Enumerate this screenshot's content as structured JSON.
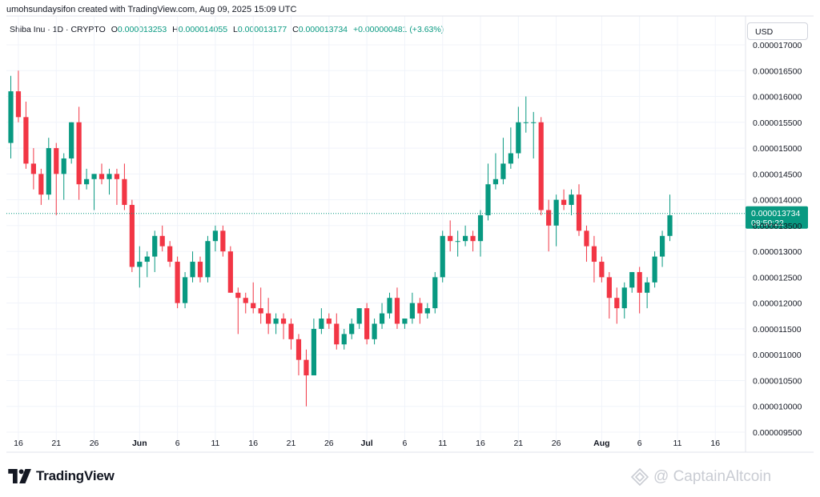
{
  "header": {
    "caption": "umohsundaysifon created with TradingView.com, Aug 09, 2025 15:09 UTC"
  },
  "legend": {
    "symbol": "Shiba Inu · 1D · CRYPTO",
    "open_label": "O",
    "open_value": "0.000013253",
    "high_label": "H",
    "high_value": "0.000014055",
    "low_label": "L",
    "low_value": "0.000013177",
    "close_label": "C",
    "close_value": "0.000013734",
    "change": "+0.000000481 (+3.63%)"
  },
  "currency_button": {
    "label": "USD"
  },
  "price_marker": {
    "price": "0.000013734",
    "countdown": "08:50:22",
    "value": 1.3734e-05,
    "color": "#089981"
  },
  "branding": {
    "logo_text": "TradingView",
    "watermark_text": "@ CaptainAltcoin"
  },
  "colors": {
    "up": "#089981",
    "down": "#f23645",
    "grid": "#f0f3fa",
    "axis_text": "#131722"
  },
  "chart_data": {
    "type": "candlestick",
    "y_axis": {
      "min": 9.5e-06,
      "max": 1.7e-05,
      "step": 5e-07,
      "tick_labels": [
        "0.000017000",
        "0.000016500",
        "0.000016000",
        "0.000015500",
        "0.000015000",
        "0.000014500",
        "0.000014000",
        "0.000013500",
        "0.000013000",
        "0.000012500",
        "0.000012000",
        "0.000011500",
        "0.000011000",
        "0.000010500",
        "0.000010000",
        "0.000009500"
      ]
    },
    "x_axis": {
      "ticks": [
        {
          "label": "16",
          "day": 1
        },
        {
          "label": "21",
          "day": 6
        },
        {
          "label": "26",
          "day": 11
        },
        {
          "label": "Jun",
          "day": 17,
          "bold": true
        },
        {
          "label": "6",
          "day": 22
        },
        {
          "label": "11",
          "day": 27
        },
        {
          "label": "16",
          "day": 32
        },
        {
          "label": "21",
          "day": 37
        },
        {
          "label": "26",
          "day": 42
        },
        {
          "label": "Jul",
          "day": 47,
          "bold": true
        },
        {
          "label": "6",
          "day": 52
        },
        {
          "label": "11",
          "day": 57
        },
        {
          "label": "16",
          "day": 62
        },
        {
          "label": "21",
          "day": 67
        },
        {
          "label": "26",
          "day": 72
        },
        {
          "label": "Aug",
          "day": 78,
          "bold": true
        },
        {
          "label": "6",
          "day": 83
        },
        {
          "label": "11",
          "day": 88
        },
        {
          "label": "16",
          "day": 93
        }
      ]
    },
    "candles": [
      {
        "o": 1.51e-05,
        "h": 1.64e-05,
        "l": 1.48e-05,
        "c": 1.61e-05
      },
      {
        "o": 1.61e-05,
        "h": 1.65e-05,
        "l": 1.55e-05,
        "c": 1.56e-05
      },
      {
        "o": 1.56e-05,
        "h": 1.59e-05,
        "l": 1.46e-05,
        "c": 1.47e-05
      },
      {
        "o": 1.47e-05,
        "h": 1.5e-05,
        "l": 1.42e-05,
        "c": 1.45e-05
      },
      {
        "o": 1.45e-05,
        "h": 1.46e-05,
        "l": 1.39e-05,
        "c": 1.41e-05
      },
      {
        "o": 1.41e-05,
        "h": 1.52e-05,
        "l": 1.4e-05,
        "c": 1.5e-05
      },
      {
        "o": 1.5e-05,
        "h": 1.51e-05,
        "l": 1.37e-05,
        "c": 1.45e-05
      },
      {
        "o": 1.45e-05,
        "h": 1.49e-05,
        "l": 1.4e-05,
        "c": 1.48e-05
      },
      {
        "o": 1.48e-05,
        "h": 1.55e-05,
        "l": 1.47e-05,
        "c": 1.55e-05
      },
      {
        "o": 1.55e-05,
        "h": 1.58e-05,
        "l": 1.4e-05,
        "c": 1.43e-05
      },
      {
        "o": 1.43e-05,
        "h": 1.46e-05,
        "l": 1.42e-05,
        "c": 1.44e-05
      },
      {
        "o": 1.44e-05,
        "h": 1.45e-05,
        "l": 1.38e-05,
        "c": 1.45e-05
      },
      {
        "o": 1.45e-05,
        "h": 1.47e-05,
        "l": 1.43e-05,
        "c": 1.44e-05
      },
      {
        "o": 1.44e-05,
        "h": 1.46e-05,
        "l": 1.41e-05,
        "c": 1.45e-05
      },
      {
        "o": 1.45e-05,
        "h": 1.46e-05,
        "l": 1.39e-05,
        "c": 1.44e-05
      },
      {
        "o": 1.44e-05,
        "h": 1.47e-05,
        "l": 1.38e-05,
        "c": 1.39e-05
      },
      {
        "o": 1.39e-05,
        "h": 1.4e-05,
        "l": 1.26e-05,
        "c": 1.27e-05
      },
      {
        "o": 1.27e-05,
        "h": 1.31e-05,
        "l": 1.23e-05,
        "c": 1.28e-05
      },
      {
        "o": 1.28e-05,
        "h": 1.3e-05,
        "l": 1.25e-05,
        "c": 1.29e-05
      },
      {
        "o": 1.29e-05,
        "h": 1.34e-05,
        "l": 1.26e-05,
        "c": 1.33e-05
      },
      {
        "o": 1.33e-05,
        "h": 1.35e-05,
        "l": 1.3e-05,
        "c": 1.31e-05
      },
      {
        "o": 1.31e-05,
        "h": 1.32e-05,
        "l": 1.27e-05,
        "c": 1.28e-05
      },
      {
        "o": 1.28e-05,
        "h": 1.29e-05,
        "l": 1.19e-05,
        "c": 1.2e-05
      },
      {
        "o": 1.2e-05,
        "h": 1.26e-05,
        "l": 1.19e-05,
        "c": 1.25e-05
      },
      {
        "o": 1.25e-05,
        "h": 1.3e-05,
        "l": 1.24e-05,
        "c": 1.28e-05
      },
      {
        "o": 1.28e-05,
        "h": 1.29e-05,
        "l": 1.24e-05,
        "c": 1.25e-05
      },
      {
        "o": 1.25e-05,
        "h": 1.33e-05,
        "l": 1.24e-05,
        "c": 1.32e-05
      },
      {
        "o": 1.32e-05,
        "h": 1.35e-05,
        "l": 1.3e-05,
        "c": 1.34e-05
      },
      {
        "o": 1.34e-05,
        "h": 1.35e-05,
        "l": 1.29e-05,
        "c": 1.3e-05
      },
      {
        "o": 1.3e-05,
        "h": 1.31e-05,
        "l": 1.22e-05,
        "c": 1.22e-05
      },
      {
        "o": 1.22e-05,
        "h": 1.23e-05,
        "l": 1.14e-05,
        "c": 1.21e-05
      },
      {
        "o": 1.21e-05,
        "h": 1.22e-05,
        "l": 1.18e-05,
        "c": 1.2e-05
      },
      {
        "o": 1.2e-05,
        "h": 1.24e-05,
        "l": 1.18e-05,
        "c": 1.19e-05
      },
      {
        "o": 1.19e-05,
        "h": 1.23e-05,
        "l": 1.16e-05,
        "c": 1.18e-05
      },
      {
        "o": 1.18e-05,
        "h": 1.21e-05,
        "l": 1.14e-05,
        "c": 1.16e-05
      },
      {
        "o": 1.16e-05,
        "h": 1.18e-05,
        "l": 1.14e-05,
        "c": 1.17e-05
      },
      {
        "o": 1.17e-05,
        "h": 1.18e-05,
        "l": 1.13e-05,
        "c": 1.16e-05
      },
      {
        "o": 1.16e-05,
        "h": 1.17e-05,
        "l": 1.11e-05,
        "c": 1.13e-05
      },
      {
        "o": 1.13e-05,
        "h": 1.14e-05,
        "l": 1.06e-05,
        "c": 1.09e-05
      },
      {
        "o": 1.09e-05,
        "h": 1.11e-05,
        "l": 1e-05,
        "c": 1.06e-05
      },
      {
        "o": 1.06e-05,
        "h": 1.17e-05,
        "l": 1.06e-05,
        "c": 1.15e-05
      },
      {
        "o": 1.15e-05,
        "h": 1.19e-05,
        "l": 1.14e-05,
        "c": 1.17e-05
      },
      {
        "o": 1.17e-05,
        "h": 1.18e-05,
        "l": 1.15e-05,
        "c": 1.16e-05
      },
      {
        "o": 1.16e-05,
        "h": 1.18e-05,
        "l": 1.11e-05,
        "c": 1.12e-05
      },
      {
        "o": 1.12e-05,
        "h": 1.15e-05,
        "l": 1.11e-05,
        "c": 1.14e-05
      },
      {
        "o": 1.14e-05,
        "h": 1.17e-05,
        "l": 1.13e-05,
        "c": 1.16e-05
      },
      {
        "o": 1.16e-05,
        "h": 1.19e-05,
        "l": 1.15e-05,
        "c": 1.19e-05
      },
      {
        "o": 1.19e-05,
        "h": 1.2e-05,
        "l": 1.12e-05,
        "c": 1.13e-05
      },
      {
        "o": 1.13e-05,
        "h": 1.17e-05,
        "l": 1.12e-05,
        "c": 1.16e-05
      },
      {
        "o": 1.16e-05,
        "h": 1.2e-05,
        "l": 1.15e-05,
        "c": 1.18e-05
      },
      {
        "o": 1.18e-05,
        "h": 1.22e-05,
        "l": 1.17e-05,
        "c": 1.21e-05
      },
      {
        "o": 1.21e-05,
        "h": 1.23e-05,
        "l": 1.15e-05,
        "c": 1.16e-05
      },
      {
        "o": 1.16e-05,
        "h": 1.17e-05,
        "l": 1.15e-05,
        "c": 1.17e-05
      },
      {
        "o": 1.17e-05,
        "h": 1.22e-05,
        "l": 1.16e-05,
        "c": 1.2e-05
      },
      {
        "o": 1.2e-05,
        "h": 1.21e-05,
        "l": 1.16e-05,
        "c": 1.18e-05
      },
      {
        "o": 1.18e-05,
        "h": 1.2e-05,
        "l": 1.17e-05,
        "c": 1.19e-05
      },
      {
        "o": 1.19e-05,
        "h": 1.26e-05,
        "l": 1.18e-05,
        "c": 1.25e-05
      },
      {
        "o": 1.25e-05,
        "h": 1.34e-05,
        "l": 1.24e-05,
        "c": 1.33e-05
      },
      {
        "o": 1.33e-05,
        "h": 1.36e-05,
        "l": 1.3e-05,
        "c": 1.32e-05
      },
      {
        "o": 1.32e-05,
        "h": 1.34e-05,
        "l": 1.29e-05,
        "c": 1.32e-05
      },
      {
        "o": 1.32e-05,
        "h": 1.35e-05,
        "l": 1.31e-05,
        "c": 1.33e-05
      },
      {
        "o": 1.33e-05,
        "h": 1.34e-05,
        "l": 1.3e-05,
        "c": 1.32e-05
      },
      {
        "o": 1.32e-05,
        "h": 1.38e-05,
        "l": 1.29e-05,
        "c": 1.37e-05
      },
      {
        "o": 1.37e-05,
        "h": 1.47e-05,
        "l": 1.36e-05,
        "c": 1.43e-05
      },
      {
        "o": 1.43e-05,
        "h": 1.49e-05,
        "l": 1.42e-05,
        "c": 1.44e-05
      },
      {
        "o": 1.44e-05,
        "h": 1.52e-05,
        "l": 1.43e-05,
        "c": 1.47e-05
      },
      {
        "o": 1.47e-05,
        "h": 1.54e-05,
        "l": 1.46e-05,
        "c": 1.49e-05
      },
      {
        "o": 1.49e-05,
        "h": 1.58e-05,
        "l": 1.48e-05,
        "c": 1.55e-05
      },
      {
        "o": 1.55e-05,
        "h": 1.6e-05,
        "l": 1.53e-05,
        "c": 1.55e-05
      },
      {
        "o": 1.55e-05,
        "h": 1.57e-05,
        "l": 1.48e-05,
        "c": 1.55e-05
      },
      {
        "o": 1.55e-05,
        "h": 1.56e-05,
        "l": 1.37e-05,
        "c": 1.38e-05
      },
      {
        "o": 1.38e-05,
        "h": 1.4e-05,
        "l": 1.3e-05,
        "c": 1.35e-05
      },
      {
        "o": 1.35e-05,
        "h": 1.41e-05,
        "l": 1.31e-05,
        "c": 1.4e-05
      },
      {
        "o": 1.4e-05,
        "h": 1.42e-05,
        "l": 1.38e-05,
        "c": 1.39e-05
      },
      {
        "o": 1.39e-05,
        "h": 1.42e-05,
        "l": 1.37e-05,
        "c": 1.41e-05
      },
      {
        "o": 1.41e-05,
        "h": 1.43e-05,
        "l": 1.33e-05,
        "c": 1.34e-05
      },
      {
        "o": 1.34e-05,
        "h": 1.35e-05,
        "l": 1.28e-05,
        "c": 1.31e-05
      },
      {
        "o": 1.31e-05,
        "h": 1.33e-05,
        "l": 1.24e-05,
        "c": 1.28e-05
      },
      {
        "o": 1.28e-05,
        "h": 1.29e-05,
        "l": 1.24e-05,
        "c": 1.25e-05
      },
      {
        "o": 1.25e-05,
        "h": 1.26e-05,
        "l": 1.17e-05,
        "c": 1.21e-05
      },
      {
        "o": 1.21e-05,
        "h": 1.23e-05,
        "l": 1.16e-05,
        "c": 1.19e-05
      },
      {
        "o": 1.19e-05,
        "h": 1.24e-05,
        "l": 1.17e-05,
        "c": 1.23e-05
      },
      {
        "o": 1.23e-05,
        "h": 1.26e-05,
        "l": 1.22e-05,
        "c": 1.26e-05
      },
      {
        "o": 1.26e-05,
        "h": 1.27e-05,
        "l": 1.18e-05,
        "c": 1.22e-05
      },
      {
        "o": 1.22e-05,
        "h": 1.25e-05,
        "l": 1.19e-05,
        "c": 1.24e-05
      },
      {
        "o": 1.24e-05,
        "h": 1.3e-05,
        "l": 1.23e-05,
        "c": 1.29e-05
      },
      {
        "o": 1.29e-05,
        "h": 1.34e-05,
        "l": 1.27e-05,
        "c": 1.33e-05
      },
      {
        "o": 1.33e-05,
        "h": 1.41e-05,
        "l": 1.32e-05,
        "c": 1.37e-05
      }
    ]
  }
}
